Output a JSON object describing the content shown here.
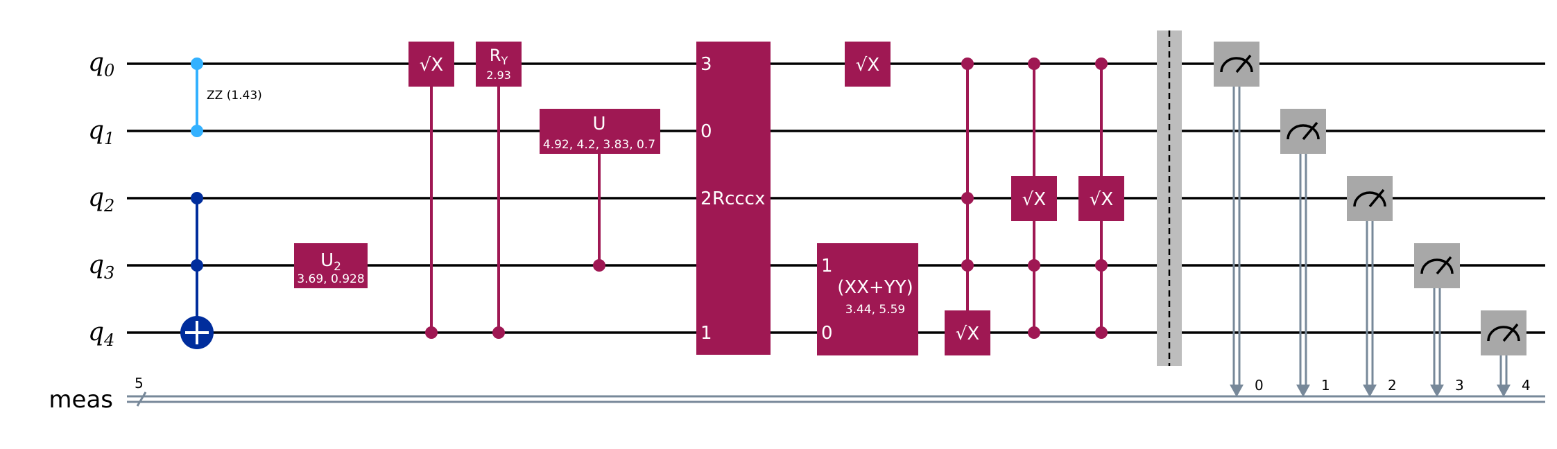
{
  "colors": {
    "gate": "#9f1853",
    "zz": "#33b1ff",
    "toffoli": "#002d9c",
    "measure": "#a8a8a8",
    "barrier": "#bdbdbd",
    "classical": "#778899"
  },
  "qubits": [
    {
      "base": "q",
      "index": "0"
    },
    {
      "base": "q",
      "index": "1"
    },
    {
      "base": "q",
      "index": "2"
    },
    {
      "base": "q",
      "index": "3"
    },
    {
      "base": "q",
      "index": "4"
    }
  ],
  "classical_register": {
    "label": "meas",
    "size": "5"
  },
  "gates": {
    "zz": {
      "label": "ZZ (1.43)"
    },
    "u2": {
      "base": "U",
      "sub": "2",
      "params": "3.69, 0.928"
    },
    "sx_ctrl": {
      "label": "√X"
    },
    "ry": {
      "base": "R",
      "sub": "Y",
      "params": "2.93"
    },
    "u": {
      "label": "U",
      "params": "4.92, 4.2, 3.83, 0.7"
    },
    "rcccx": {
      "label": "Rcccx",
      "ports": [
        "3",
        "0",
        "2",
        "1"
      ]
    },
    "sx": {
      "label": "√X"
    },
    "xxyy": {
      "label": "(XX+YY)",
      "params": "3.44, 5.59",
      "ports": [
        "1",
        "0"
      ]
    },
    "csx_a": {
      "label": "√X"
    },
    "csx_b": {
      "label": "√X"
    },
    "csx_c": {
      "label": "√X"
    }
  },
  "measurements": [
    {
      "bit": "0"
    },
    {
      "bit": "1"
    },
    {
      "bit": "2"
    },
    {
      "bit": "3"
    },
    {
      "bit": "4"
    }
  ]
}
